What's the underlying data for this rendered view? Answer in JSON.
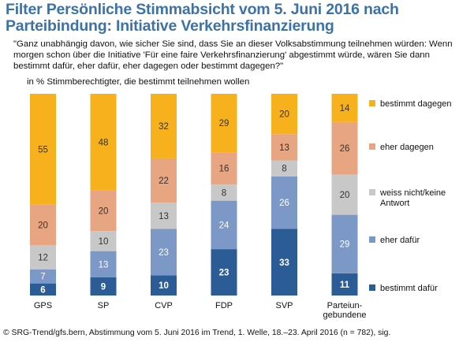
{
  "title": "Filter Persönliche Stimmabsicht vom 5. Juni 2016 nach Parteibindung: Initiative Verkehrsfinanzierung",
  "question": "\"Ganz unabhängig davon, wie sicher Sie sind, dass Sie an dieser Volksabstimmung teilnehmen würden: Wenn morgen schon über die Initiative 'Für eine faire Verkehrsfinanzierung' abgestimmt würde, wären Sie dann bestimmt dafür, eher dafür, eher dagegen oder bestimmt dagegen?\"",
  "subtitle": "in % Stimmberechtigter, die bestimmt teilnehmen wollen",
  "footer": "© SRG-Trend/gfs.bern, Abstimmung vom 5. Juni 2016 im Trend, 1. Welle, 18.–23. April 2016 (n = 782), sig.",
  "chart_data": {
    "type": "bar",
    "stacked": true,
    "categories": [
      "GPS",
      "SP",
      "CVP",
      "FDP",
      "SVP",
      "Parteiun-\ngebundene"
    ],
    "series": [
      {
        "name": "bestimmt dafür",
        "color": "#2b5c96",
        "values": [
          6,
          9,
          10,
          23,
          33,
          11
        ]
      },
      {
        "name": "eher dafür",
        "color": "#7c98c6",
        "values": [
          7,
          13,
          23,
          24,
          26,
          29
        ]
      },
      {
        "name": "weiss nicht/keine Antwort",
        "color": "#c8c8c8",
        "values": [
          12,
          10,
          13,
          8,
          8,
          20
        ]
      },
      {
        "name": "eher dagegen",
        "color": "#e8a582",
        "values": [
          20,
          20,
          22,
          16,
          13,
          26
        ]
      },
      {
        "name": "bestimmt dagegen",
        "color": "#f7b11c",
        "values": [
          55,
          48,
          32,
          29,
          20,
          14
        ]
      }
    ],
    "legend_order": [
      "bestimmt dagegen",
      "eher dagegen",
      "weiss nicht/keine Antwort",
      "eher dafür",
      "bestimmt dafür"
    ],
    "legend_position": "right",
    "label_colors": {
      "dark": "#ffffff",
      "light": "#333333"
    }
  }
}
